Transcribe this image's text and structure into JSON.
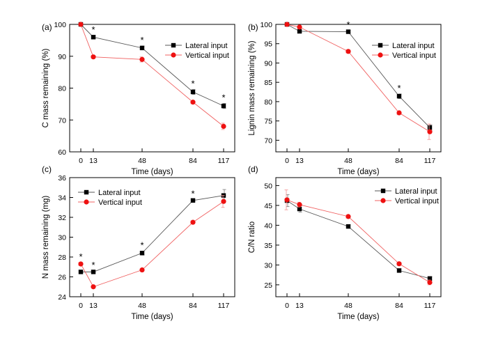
{
  "colors": {
    "lateral": "#000000",
    "vertical": "#ee1111",
    "axis": "#000000"
  },
  "chart_data": [
    {
      "type": "line",
      "panel_label": "(a)",
      "ylabel": "C mass remaining (%)",
      "xlabel": "Time (days)",
      "x": [
        0,
        13,
        48,
        84,
        117
      ],
      "xticks": [
        "0",
        "13",
        "48",
        "84",
        "117"
      ],
      "ylim": [
        60,
        100
      ],
      "yticks": [
        60,
        70,
        80,
        90,
        100
      ],
      "legend_position": "top-right",
      "series": [
        {
          "name": "Lateral input",
          "marker": "square",
          "values": [
            100,
            96,
            92.6,
            78.8,
            74.4
          ],
          "err": [
            0,
            0.5,
            0.6,
            0.8,
            0.8
          ]
        },
        {
          "name": "Vertical input",
          "marker": "circle",
          "values": [
            100,
            89.8,
            89,
            75.6,
            68
          ],
          "err": [
            0,
            0.4,
            0.8,
            0.5,
            1.0
          ]
        }
      ],
      "significance": [
        "",
        "*",
        "*",
        "*",
        "*"
      ]
    },
    {
      "type": "line",
      "panel_label": "(b)",
      "ylabel": "Lignin mass remaining (%)",
      "xlabel": "Time (days)",
      "x": [
        0,
        13,
        48,
        84,
        117
      ],
      "xticks": [
        "0",
        "13",
        "48",
        "84",
        "117"
      ],
      "ylim": [
        67,
        100
      ],
      "yticks": [
        70,
        75,
        80,
        85,
        90,
        95,
        100
      ],
      "legend_position": "top-right",
      "series": [
        {
          "name": "Lateral input",
          "marker": "square",
          "values": [
            100,
            98.2,
            98.1,
            81.4,
            73.3
          ],
          "err": [
            0,
            0.3,
            0.3,
            0.6,
            0.7
          ]
        },
        {
          "name": "Vertical input",
          "marker": "circle",
          "values": [
            100,
            99.3,
            93,
            77.1,
            72.2
          ],
          "err": [
            0,
            0.3,
            0.4,
            0.5,
            2.0
          ]
        }
      ],
      "significance": [
        "",
        "",
        "*",
        "*",
        ""
      ]
    },
    {
      "type": "line",
      "panel_label": "(c)",
      "ylabel": "N mass remaining (mg)",
      "xlabel": "Time (days)",
      "x": [
        0,
        13,
        48,
        84,
        117
      ],
      "xticks": [
        "0",
        "13",
        "48",
        "84",
        "117"
      ],
      "ylim": [
        24,
        36
      ],
      "yticks": [
        24,
        26,
        28,
        30,
        32,
        34,
        36
      ],
      "legend_position": "top-left",
      "series": [
        {
          "name": "Lateral input",
          "marker": "square",
          "values": [
            26.5,
            26.5,
            28.4,
            33.7,
            34.2
          ],
          "err": [
            0,
            0.1,
            0.2,
            0.1,
            0.6
          ]
        },
        {
          "name": "Vertical input",
          "marker": "circle",
          "values": [
            27.3,
            25.0,
            26.7,
            31.5,
            33.6
          ],
          "err": [
            0.15,
            0.1,
            0.1,
            0.15,
            0.6
          ]
        }
      ],
      "significance": [
        "*",
        "*",
        "*",
        "*",
        ""
      ]
    },
    {
      "type": "line",
      "panel_label": "(d)",
      "ylabel": "C/N ratio",
      "xlabel": "Time (days)",
      "x": [
        0,
        13,
        48,
        84,
        117
      ],
      "xticks": [
        "0",
        "13",
        "48",
        "84",
        "117"
      ],
      "ylim": [
        22,
        52
      ],
      "yticks": [
        25,
        30,
        35,
        40,
        45,
        50
      ],
      "legend_position": "top-right",
      "series": [
        {
          "name": "Lateral input",
          "marker": "square",
          "values": [
            46.2,
            44.1,
            39.7,
            28.6,
            26.6
          ],
          "err": [
            1.5,
            0.8,
            0.4,
            0.4,
            0.4
          ]
        },
        {
          "name": "Vertical input",
          "marker": "circle",
          "values": [
            46.4,
            45.2,
            42.2,
            30.3,
            25.6
          ],
          "err": [
            2.5,
            0.6,
            0.4,
            0.4,
            0.6
          ]
        }
      ],
      "significance": [
        "",
        "",
        "",
        "",
        ""
      ]
    }
  ]
}
